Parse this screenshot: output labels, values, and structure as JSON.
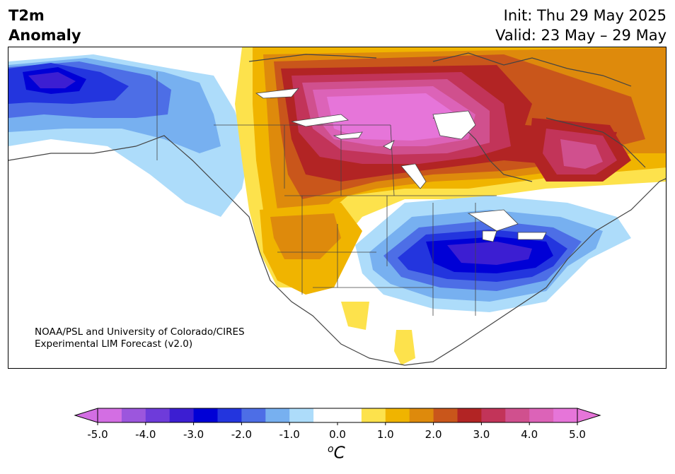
{
  "header": {
    "title_line1": "T2m",
    "title_line2": "Anomaly",
    "init": "Init: Thu 29 May 2025",
    "valid": "Valid: 23 May – 29 May"
  },
  "credit": {
    "line1": "NOAA/PSL and University of Colorado/CIRES",
    "line2": "Experimental LIM Forecast (v2.0)"
  },
  "colorbar": {
    "unit_base": "C",
    "unit_sup": "o",
    "min": -5.0,
    "max": 5.0,
    "extend": "both",
    "colors": [
      "#d36ee3",
      "#9c56dd",
      "#6e3bda",
      "#3c1ed2",
      "#0000d6",
      "#2335de",
      "#4d6ee6",
      "#77b0f0",
      "#addcfa",
      "#ffffff",
      "#ffffff",
      "#fde24c",
      "#f0b400",
      "#de8a0c",
      "#c9561b",
      "#b22424",
      "#c23459",
      "#d0508e",
      "#dc63b8",
      "#e675d9"
    ],
    "ticks": [
      "-5.0",
      "-4.0",
      "-3.0",
      "-2.0",
      "-1.0",
      "0.0",
      "1.0",
      "2.0",
      "3.0",
      "4.0",
      "5.0"
    ]
  },
  "map": {
    "region": "North America",
    "variable": "2-m temperature anomaly"
  }
}
